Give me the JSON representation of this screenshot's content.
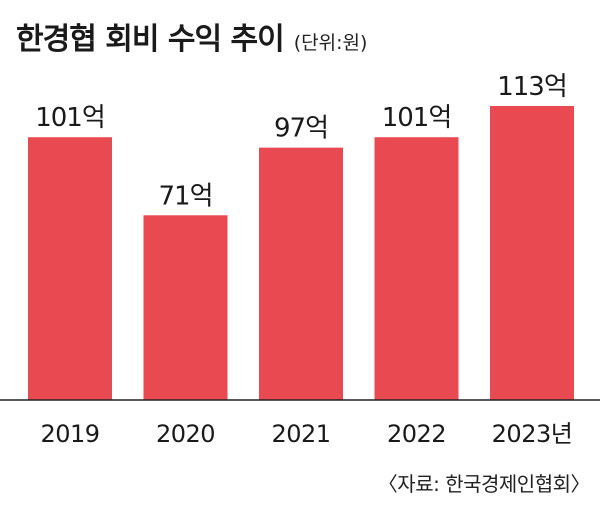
{
  "chart_data": {
    "type": "bar",
    "title": "한경협 회비 수익 추이",
    "subtitle": "(단위:원)",
    "categories": [
      "2019",
      "2020",
      "2021",
      "2022",
      "2023년"
    ],
    "values": [
      101,
      71,
      97,
      101,
      113
    ],
    "value_labels": [
      "101억",
      "71억",
      "97억",
      "101억",
      "113억"
    ],
    "ylim": [
      0,
      120
    ],
    "bar_color": "#e94a51",
    "grid": false,
    "legend": "none"
  },
  "source": "〈자료: 한국경제인협회〉"
}
